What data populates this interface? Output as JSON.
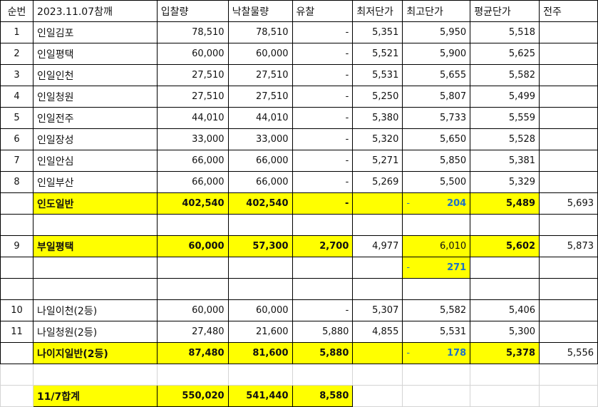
{
  "colors": {
    "highlight": "#ffff00",
    "accent_blue": "#1f72c6"
  },
  "header": [
    "순번",
    "2023.11.07참깨",
    "입찰량",
    "낙찰물량",
    "유찰",
    "최저단가",
    "최고단가",
    "평균단가",
    "전주"
  ],
  "rows": [
    {
      "kind": "item",
      "cells": [
        "1",
        "인일김포",
        "78,510",
        "78,510",
        "-",
        "5,351",
        "5,950",
        "5,518",
        ""
      ]
    },
    {
      "kind": "item",
      "cells": [
        "2",
        "인일평택",
        "60,000",
        "60,000",
        "-",
        "5,521",
        "5,900",
        "5,625",
        ""
      ]
    },
    {
      "kind": "item",
      "cells": [
        "3",
        "인일인천",
        "27,510",
        "27,510",
        "-",
        "5,531",
        "5,655",
        "5,582",
        ""
      ]
    },
    {
      "kind": "item",
      "cells": [
        "4",
        "인일청원",
        "27,510",
        "27,510",
        "-",
        "5,250",
        "5,807",
        "5,499",
        ""
      ]
    },
    {
      "kind": "item",
      "cells": [
        "5",
        "인일전주",
        "44,010",
        "44,010",
        "-",
        "5,380",
        "5,733",
        "5,559",
        ""
      ]
    },
    {
      "kind": "item",
      "cells": [
        "6",
        "인일장성",
        "33,000",
        "33,000",
        "-",
        "5,320",
        "5,650",
        "5,528",
        ""
      ]
    },
    {
      "kind": "item",
      "cells": [
        "7",
        "인일안심",
        "66,000",
        "66,000",
        "-",
        "5,271",
        "5,850",
        "5,381",
        ""
      ]
    },
    {
      "kind": "item",
      "cells": [
        "8",
        "인일부산",
        "66,000",
        "66,000",
        "-",
        "5,269",
        "5,500",
        "5,329",
        ""
      ]
    },
    {
      "kind": "subtotal",
      "yellow": [
        1,
        2,
        3,
        4,
        5,
        6,
        7
      ],
      "bold": [
        1,
        2,
        3,
        4,
        7
      ],
      "blue_col": 6,
      "lead": "-",
      "cells": [
        "",
        "인도일반",
        "402,540",
        "402,540",
        "-",
        "",
        "204",
        "5,489",
        "5,693"
      ]
    },
    {
      "kind": "blank",
      "cells": [
        "",
        "",
        "",
        "",
        "",
        "",
        "",
        "",
        ""
      ]
    },
    {
      "kind": "subtotal",
      "yellow": [
        1,
        2,
        3,
        4,
        6,
        7
      ],
      "bold": [
        1,
        2,
        3,
        4,
        7
      ],
      "cells": [
        "9",
        "부일평택",
        "60,000",
        "57,300",
        "2,700",
        "4,977",
        "6,010",
        "5,602",
        "5,873"
      ]
    },
    {
      "kind": "extra",
      "yellow": [
        6
      ],
      "bold": [],
      "blue_col": 6,
      "lead": "-",
      "cells": [
        "",
        "",
        "",
        "",
        "",
        "",
        "271",
        "",
        ""
      ]
    },
    {
      "kind": "blank",
      "cells": [
        "",
        "",
        "",
        "",
        "",
        "",
        "",
        "",
        ""
      ]
    },
    {
      "kind": "item",
      "cells": [
        "10",
        "나일이천(2등)",
        "60,000",
        "60,000",
        "-",
        "5,307",
        "5,582",
        "5,406",
        ""
      ]
    },
    {
      "kind": "item",
      "cells": [
        "11",
        "나일청원(2등)",
        "27,480",
        "21,600",
        "5,880",
        "4,855",
        "5,531",
        "5,300",
        ""
      ]
    },
    {
      "kind": "subtotal",
      "yellow": [
        1,
        2,
        3,
        4,
        5,
        6,
        7
      ],
      "bold": [
        1,
        2,
        3,
        4,
        7
      ],
      "blue_col": 6,
      "lead": "-",
      "cells": [
        "",
        "나이지일반(2등)",
        "87,480",
        "81,600",
        "5,880",
        "",
        "178",
        "5,378",
        "5,556"
      ]
    },
    {
      "kind": "grid",
      "cells": [
        "",
        "",
        "",
        "",
        "",
        "",
        "",
        "",
        ""
      ]
    },
    {
      "kind": "total",
      "yellow": [
        1,
        2,
        3,
        4
      ],
      "bold": [
        1,
        2,
        3,
        4
      ],
      "cells": [
        "",
        "11/7합계",
        "550,020",
        "541,440",
        "8,580",
        "",
        "",
        "",
        ""
      ]
    }
  ]
}
